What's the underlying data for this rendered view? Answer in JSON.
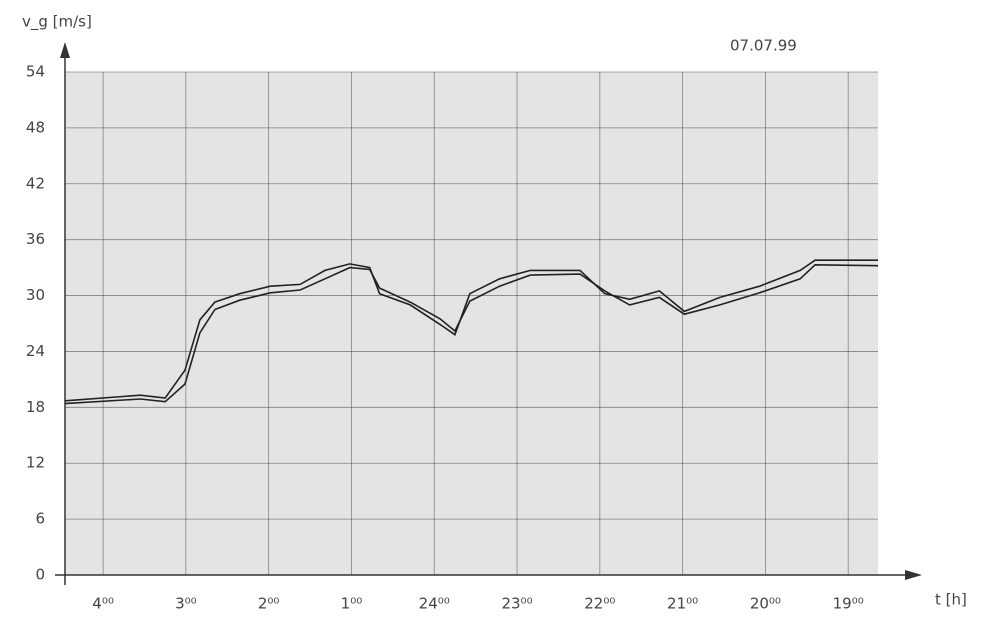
{
  "chart_data": {
    "type": "line",
    "title": "07.07.99",
    "y_label": "v_g [m/s]",
    "x_label": "t [h]",
    "x": [
      28.46,
      27.55,
      27.25,
      27.01,
      26.83,
      26.65,
      26.35,
      25.98,
      25.62,
      25.32,
      25.02,
      24.78,
      24.66,
      24.29,
      23.93,
      23.75,
      23.57,
      23.21,
      22.84,
      22.24,
      21.94,
      21.64,
      21.28,
      20.98,
      20.55,
      20.07,
      19.58,
      19.4,
      18.64
    ],
    "series": [
      {
        "color": "#222222",
        "values": [
          18.7,
          19.3,
          19,
          22,
          27.4,
          29.3,
          30.2,
          31,
          31.2,
          32.7,
          33.4,
          33,
          30.2,
          29,
          26.9,
          25.8,
          30.2,
          31.8,
          32.7,
          32.7,
          30.2,
          29.6,
          30.5,
          28.3,
          29.8,
          31,
          32.7,
          33.8,
          33.8
        ]
      },
      {
        "color": "#222222",
        "values": [
          18.4,
          18.9,
          18.6,
          20.5,
          26,
          28.5,
          29.5,
          30.3,
          30.6,
          31.8,
          33,
          32.8,
          30.8,
          29.3,
          27.5,
          26.2,
          29.4,
          31,
          32.2,
          32.3,
          30.5,
          29,
          29.8,
          28,
          29,
          30.3,
          31.8,
          33.3,
          33.2
        ]
      }
    ],
    "xlim": [
      28.46,
      18.64
    ],
    "xticks": [
      {
        "value": 28,
        "label": "4⁰⁰"
      },
      {
        "value": 27,
        "label": "3⁰⁰"
      },
      {
        "value": 26,
        "label": "2⁰⁰"
      },
      {
        "value": 25,
        "label": "1⁰⁰"
      },
      {
        "value": 24,
        "label": "24⁰⁰"
      },
      {
        "value": 23,
        "label": "23⁰⁰"
      },
      {
        "value": 22,
        "label": "22⁰⁰"
      },
      {
        "value": 21,
        "label": "21⁰⁰"
      },
      {
        "value": 20,
        "label": "20⁰⁰"
      },
      {
        "value": 19,
        "label": "19⁰⁰"
      }
    ],
    "ylim": [
      0,
      54
    ],
    "yticks": [
      0,
      6,
      12,
      18,
      24,
      30,
      36,
      42,
      48,
      54
    ],
    "grid": true
  }
}
